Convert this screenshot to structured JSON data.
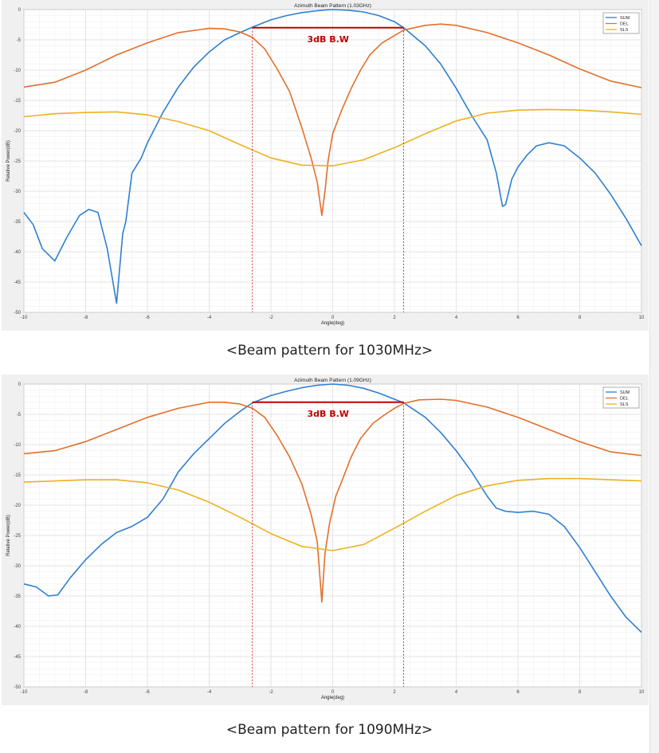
{
  "captions": [
    "<Beam pattern for 1030MHz>",
    "<Beam pattern for 1090MHz>"
  ],
  "chart_data": [
    {
      "type": "line",
      "title": "Azimuth Beam Pattern (1.03GHz)",
      "xlabel": "Angle(deg)",
      "ylabel": "Relative Power(dB)",
      "xlim": [
        -10,
        10
      ],
      "ylim": [
        -50,
        0
      ],
      "xticks": [
        -10,
        -8,
        -6,
        -4,
        -2,
        0,
        2,
        4,
        6,
        8,
        10
      ],
      "yticks": [
        0,
        -5,
        -10,
        -15,
        -20,
        -25,
        -30,
        -35,
        -40,
        -45,
        -50
      ],
      "grid": true,
      "legend": "top-right",
      "annotation": {
        "text": "3dB B.W",
        "level": -3,
        "x_from": -2.6,
        "x_to": 2.3,
        "color": "#c00000"
      },
      "series": [
        {
          "name": "SUM",
          "color": "#2f7fd1",
          "x": [
            -10,
            -9.7,
            -9.4,
            -9,
            -8.6,
            -8.2,
            -7.9,
            -7.6,
            -7.3,
            -7.0,
            -6.8,
            -6.7,
            -6.5,
            -6.2,
            -6.0,
            -5.5,
            -5.0,
            -4.5,
            -4.0,
            -3.5,
            -3.0,
            -2.6,
            -2.0,
            -1.5,
            -1.0,
            -0.5,
            -0.2,
            0,
            0.5,
            1.0,
            1.5,
            2.0,
            2.3,
            3.0,
            3.5,
            4.0,
            4.5,
            5.0,
            5.3,
            5.5,
            5.6,
            5.8,
            6.0,
            6.3,
            6.6,
            7.0,
            7.5,
            8.0,
            8.5,
            9.0,
            9.5,
            10
          ],
          "y": [
            -33.5,
            -35.5,
            -39.5,
            -41.5,
            -37.5,
            -34,
            -33.0,
            -33.5,
            -39.5,
            -48.5,
            -37,
            -35,
            -27,
            -24.5,
            -22,
            -17,
            -12.8,
            -9.5,
            -7,
            -5,
            -3.8,
            -2.9,
            -1.7,
            -1.0,
            -0.5,
            -0.2,
            -0.05,
            0,
            -0.1,
            -0.4,
            -1.0,
            -2.0,
            -3.0,
            -6,
            -9,
            -13,
            -17.5,
            -21.5,
            -27,
            -32.5,
            -32.2,
            -28,
            -26,
            -24,
            -22.5,
            -22,
            -22.5,
            -24.5,
            -27,
            -30.5,
            -34.5,
            -39
          ]
        },
        {
          "name": "DEL",
          "color": "#e36f2b",
          "x": [
            -10,
            -9,
            -8,
            -7,
            -6,
            -5,
            -4,
            -3.5,
            -3,
            -2.6,
            -2.2,
            -1.8,
            -1.4,
            -1.0,
            -0.7,
            -0.5,
            -0.35,
            -0.25,
            -0.15,
            0,
            0.3,
            0.6,
            0.9,
            1.2,
            1.6,
            2.0,
            2.3,
            3.0,
            3.5,
            4.0,
            5.0,
            6.0,
            7.0,
            8.0,
            9.0,
            10
          ],
          "y": [
            -12.8,
            -12,
            -10,
            -7.5,
            -5.5,
            -3.8,
            -3.1,
            -3.2,
            -3.7,
            -4.6,
            -6.5,
            -9.8,
            -13.5,
            -19.5,
            -24.5,
            -28.5,
            -34.0,
            -30,
            -25,
            -20.5,
            -16.5,
            -13,
            -10,
            -7.5,
            -5.5,
            -4.3,
            -3.4,
            -2.6,
            -2.4,
            -2.6,
            -3.8,
            -5.5,
            -7.5,
            -9.8,
            -11.8,
            -12.9
          ]
        },
        {
          "name": "SLS",
          "color": "#edb120",
          "x": [
            -10,
            -9,
            -8,
            -7,
            -6,
            -5,
            -4,
            -3,
            -2,
            -1,
            0,
            1,
            2,
            3,
            4,
            5,
            6,
            7,
            8,
            9,
            10
          ],
          "y": [
            -17.7,
            -17.2,
            -17,
            -16.9,
            -17.4,
            -18.5,
            -20,
            -22.3,
            -24.5,
            -25.7,
            -25.8,
            -24.8,
            -22.8,
            -20.5,
            -18.4,
            -17.1,
            -16.6,
            -16.5,
            -16.6,
            -16.9,
            -17.3
          ]
        }
      ]
    },
    {
      "type": "line",
      "title": "Azimuth Beam Pattern (1.09GHz)",
      "xlabel": "Angle(deg)",
      "ylabel": "Relative Power(dB)",
      "xlim": [
        -10,
        10
      ],
      "ylim": [
        -50,
        0
      ],
      "xticks": [
        -10,
        -8,
        -6,
        -4,
        -2,
        0,
        2,
        4,
        6,
        8,
        10
      ],
      "yticks": [
        0,
        -5,
        -10,
        -15,
        -20,
        -25,
        -30,
        -35,
        -40,
        -45,
        -50
      ],
      "grid": true,
      "legend": "top-right",
      "annotation": {
        "text": "3dB B.W",
        "level": -3,
        "x_from": -2.6,
        "x_to": 2.3,
        "color": "#c00000"
      },
      "series": [
        {
          "name": "SUM",
          "color": "#2f7fd1",
          "x": [
            -10,
            -9.6,
            -9.2,
            -8.9,
            -8.5,
            -8.0,
            -7.5,
            -7.0,
            -6.5,
            -6.0,
            -5.5,
            -5.0,
            -4.5,
            -4.0,
            -3.5,
            -3.0,
            -2.6,
            -2.0,
            -1.5,
            -1.0,
            -0.5,
            0,
            0.5,
            1.0,
            1.5,
            2.0,
            2.3,
            3.0,
            3.5,
            4.0,
            4.5,
            5.0,
            5.3,
            5.6,
            6.0,
            6.5,
            7.0,
            7.5,
            8.0,
            8.5,
            9.0,
            9.5,
            10
          ],
          "y": [
            -33,
            -33.5,
            -35,
            -34.8,
            -32,
            -29,
            -26.5,
            -24.5,
            -23.5,
            -22,
            -19,
            -14.5,
            -11.5,
            -9,
            -6.5,
            -4.5,
            -3.1,
            -1.9,
            -1.2,
            -0.6,
            -0.2,
            0,
            -0.2,
            -0.7,
            -1.5,
            -2.5,
            -3.1,
            -5.5,
            -8,
            -11,
            -14.5,
            -18.5,
            -20.5,
            -21,
            -21.2,
            -21,
            -21.5,
            -23.5,
            -27,
            -31,
            -35,
            -38.5,
            -41
          ]
        },
        {
          "name": "DEL",
          "color": "#e36f2b",
          "x": [
            -10,
            -9,
            -8,
            -7,
            -6,
            -5,
            -4,
            -3.5,
            -3,
            -2.6,
            -2.2,
            -1.8,
            -1.4,
            -1.0,
            -0.7,
            -0.5,
            -0.35,
            -0.25,
            -0.1,
            0.1,
            0.3,
            0.6,
            0.9,
            1.3,
            1.7,
            2.0,
            2.3,
            2.8,
            3.5,
            4.0,
            5.0,
            6.0,
            7.0,
            8.0,
            9.0,
            10
          ],
          "y": [
            -11.5,
            -11,
            -9.5,
            -7.5,
            -5.5,
            -4,
            -3,
            -3,
            -3.3,
            -4,
            -5.5,
            -8.5,
            -12,
            -16.5,
            -21.5,
            -26,
            -36.0,
            -28,
            -23,
            -18.5,
            -16,
            -12,
            -9,
            -6.5,
            -5,
            -4.0,
            -3.2,
            -2.6,
            -2.5,
            -2.7,
            -3.8,
            -5.5,
            -7.5,
            -9.5,
            -11.2,
            -11.8
          ]
        },
        {
          "name": "SLS",
          "color": "#edb120",
          "x": [
            -10,
            -9,
            -8,
            -7,
            -6,
            -5,
            -4,
            -3,
            -2,
            -1,
            0,
            1,
            2,
            3,
            4,
            5,
            6,
            7,
            8,
            9,
            10
          ],
          "y": [
            -16.2,
            -16,
            -15.8,
            -15.8,
            -16.3,
            -17.5,
            -19.5,
            -22,
            -24.7,
            -26.8,
            -27.5,
            -26.5,
            -23.8,
            -21,
            -18.4,
            -16.8,
            -15.9,
            -15.6,
            -15.6,
            -15.8,
            -16
          ]
        }
      ]
    }
  ]
}
